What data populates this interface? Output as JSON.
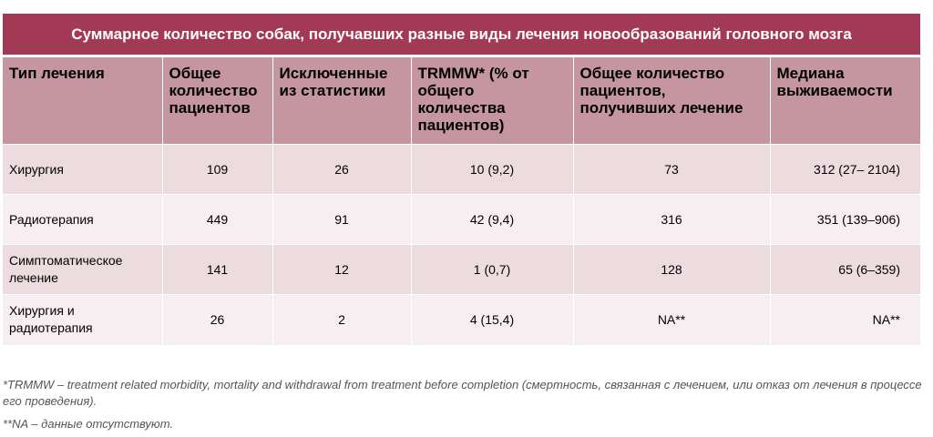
{
  "title": "Суммарное количество собак, получавших разные виды лечения новообразований головного мозга",
  "headers": [
    "Тип лечения",
    "Общее количество пациентов",
    "Исключенные из статистики",
    "TRMMW* (% от общего количества пациентов)",
    "Общее количество пациентов, получивших лечение",
    "Медиана выживаемости"
  ],
  "rows": [
    [
      "Хирургия",
      "109",
      "26",
      "10 (9,2)",
      "73",
      "312 (27– 2104)"
    ],
    [
      "Радиотерапия",
      "449",
      "91",
      "42 (9,4)",
      "316",
      "351 (139–906)"
    ],
    [
      "Симптоматическое лечение",
      "141",
      "12",
      "1 (0,7)",
      "128",
      "65 (6–359)"
    ],
    [
      "Хирургия и радиотерапия",
      "26",
      "2",
      "4 (15,4)",
      "NA**",
      "NA**"
    ]
  ],
  "footnotes": {
    "trmmw": "*TRMMW – treatment related morbidity, mortality and withdrawal from treatment before completion (смертность, связанная с лечением, или отказ от лечения в процессе его проведения).",
    "na": "**NA – данные отсутствуют."
  }
}
